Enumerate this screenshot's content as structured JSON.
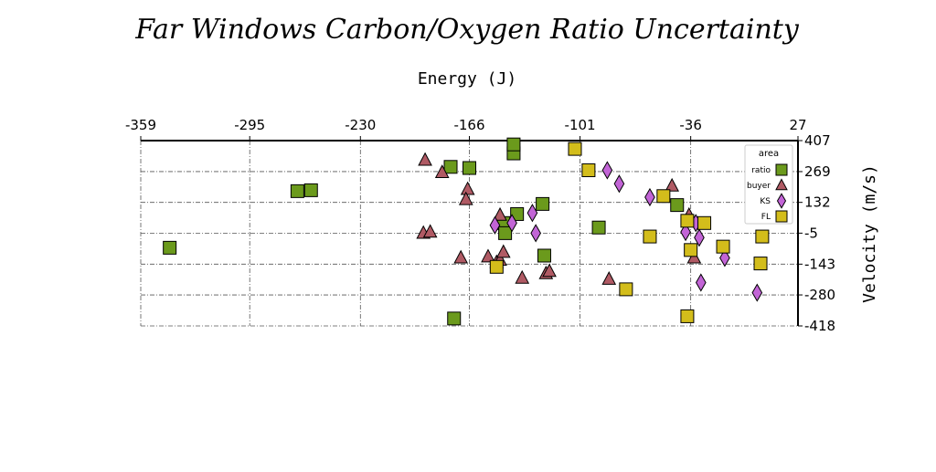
{
  "chart_data": {
    "type": "scatter",
    "title": "Far Windows Carbon/Oxygen Ratio Uncertainty",
    "xlabel": "Energy (J)",
    "ylabel": "Velocity (m/s)",
    "xlim": [
      -359,
      27
    ],
    "ylim": [
      -418,
      407
    ],
    "x_ticks": [
      "-359",
      "-295",
      "-230",
      "-166",
      "-101",
      "-36",
      "27"
    ],
    "y_ticks": [
      "407",
      "269",
      "132",
      "-5",
      "-143",
      "-280",
      "-418"
    ],
    "x_tick_values": [
      -359,
      -295,
      -230,
      -166,
      -101,
      -36,
      27
    ],
    "y_tick_values": [
      407,
      269,
      132,
      -5,
      -143,
      -280,
      -418
    ],
    "x_axis_position": "top",
    "y_axis_position": "right",
    "grid": true,
    "legend": {
      "title": "area",
      "placement": "top-right"
    },
    "series": [
      {
        "name": "ratio",
        "marker": "square",
        "color": "#6b9a1c",
        "points": [
          [
            -342,
            -70
          ],
          [
            -267,
            182
          ],
          [
            -259,
            186
          ],
          [
            -175,
            -385
          ],
          [
            -177,
            290
          ],
          [
            -166,
            285
          ],
          [
            -146,
            40
          ],
          [
            -145,
            -5
          ],
          [
            -140,
            350
          ],
          [
            -140,
            390
          ],
          [
            -138,
            80
          ],
          [
            -123,
            125
          ],
          [
            -122,
            -105
          ],
          [
            -90,
            20
          ],
          [
            -44,
            120
          ]
        ]
      },
      {
        "name": "buyer",
        "marker": "triangle",
        "color": "#b05a64",
        "points": [
          [
            -193,
            -5
          ],
          [
            -189,
            0
          ],
          [
            -192,
            320
          ],
          [
            -182,
            265
          ],
          [
            -167,
            190
          ],
          [
            -168,
            145
          ],
          [
            -171,
            -115
          ],
          [
            -155,
            -110
          ],
          [
            -148,
            75
          ],
          [
            -150,
            -135
          ],
          [
            -148,
            -125
          ],
          [
            -146,
            -90
          ],
          [
            -135,
            -205
          ],
          [
            -121,
            -185
          ],
          [
            -119,
            -175
          ],
          [
            -84,
            -210
          ],
          [
            -47,
            205
          ],
          [
            -37,
            75
          ],
          [
            -34,
            -115
          ]
        ]
      },
      {
        "name": "KS",
        "marker": "diamond",
        "color": "#c264d6",
        "points": [
          [
            -151,
            30
          ],
          [
            -141,
            40
          ],
          [
            -129,
            85
          ],
          [
            -127,
            -5
          ],
          [
            -85,
            275
          ],
          [
            -78,
            215
          ],
          [
            -60,
            155
          ],
          [
            -39,
            0
          ],
          [
            -33,
            40
          ],
          [
            -31,
            -25
          ],
          [
            -16,
            -115
          ],
          [
            -30,
            -225
          ],
          [
            3,
            -270
          ]
        ]
      },
      {
        "name": "FL",
        "marker": "square",
        "color": "#d3bd1b",
        "points": [
          [
            -104,
            370
          ],
          [
            -96,
            275
          ],
          [
            -74,
            -255
          ],
          [
            -60,
            -20
          ],
          [
            -52,
            160
          ],
          [
            -38,
            50
          ],
          [
            -36,
            -80
          ],
          [
            -28,
            40
          ],
          [
            -17,
            -65
          ],
          [
            -38,
            -375
          ],
          [
            6,
            -20
          ],
          [
            5,
            -140
          ],
          [
            -150,
            -155
          ]
        ]
      }
    ]
  }
}
